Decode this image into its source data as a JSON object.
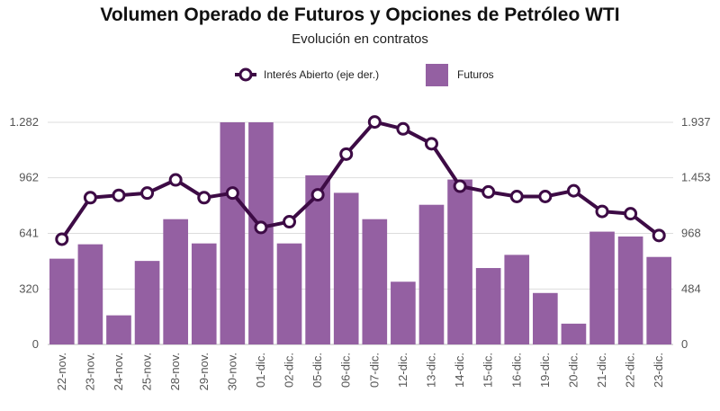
{
  "chart_data": {
    "type": "bar",
    "title": "Volumen Operado de Futuros y Opciones de Petróleo WTI",
    "subtitle": "Evolución en contratos",
    "categories": [
      "22-nov.",
      "23-nov.",
      "24-nov.",
      "25-nov.",
      "28-nov.",
      "29-nov.",
      "30-nov.",
      "01-dic.",
      "02-dic.",
      "05-dic.",
      "06-dic.",
      "07-dic.",
      "12-dic.",
      "13-dic.",
      "14-dic.",
      "15-dic.",
      "16-dic.",
      "19-dic.",
      "20-dic.",
      "21-dic.",
      "22-dic.",
      "23-dic."
    ],
    "series": [
      {
        "name": "Futuros",
        "type": "bar",
        "axis": "left",
        "color": "#9460a2",
        "values": [
          495,
          578,
          168,
          482,
          723,
          583,
          1282,
          1282,
          583,
          976,
          875,
          723,
          362,
          806,
          952,
          441,
          517,
          297,
          120,
          651,
          623,
          505
        ]
      },
      {
        "name": "Interés Abierto (eje der.)",
        "type": "line",
        "axis": "right",
        "color": "#3d0b45",
        "values": [
          918,
          1280,
          1300,
          1320,
          1435,
          1280,
          1320,
          1020,
          1070,
          1305,
          1660,
          1940,
          1880,
          1750,
          1380,
          1330,
          1290,
          1290,
          1340,
          1160,
          1140,
          950
        ]
      }
    ],
    "left_axis": {
      "ticks": [
        "0",
        "320",
        "641",
        "962",
        "1.282"
      ],
      "tick_values": [
        0,
        320,
        641,
        962,
        1282
      ],
      "ylim": [
        0,
        1282
      ]
    },
    "right_axis": {
      "ticks": [
        "0",
        "484",
        "968",
        "1.453",
        "1.937"
      ],
      "tick_values": [
        0,
        484,
        968,
        1453,
        1937
      ],
      "ylim": [
        0,
        1937
      ]
    },
    "legend": {
      "placement": "top-center"
    },
    "grid": true
  }
}
